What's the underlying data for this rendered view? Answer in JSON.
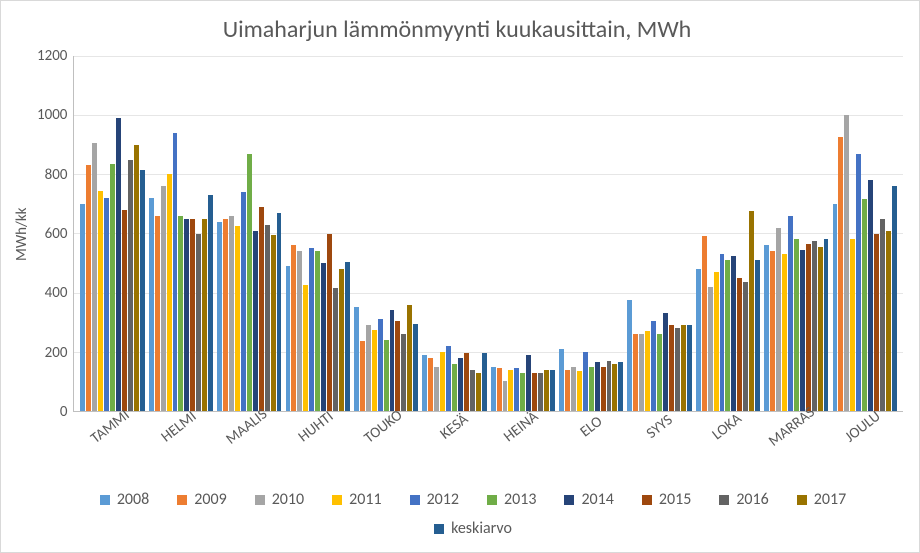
{
  "chart": {
    "type": "bar",
    "title": "Uimaharjun lämmönmyynti kuukausittain, MWh",
    "title_fontsize": 24,
    "ylabel": "MWh/kk",
    "label_fontsize": 15,
    "tick_fontsize": 15,
    "background_color": "#ffffff",
    "border_color": "#d9d9d9",
    "grid_color": "#e6e6e6",
    "axis_color": "#bfbfbf",
    "text_color": "#595959",
    "ylim": [
      0,
      1200
    ],
    "ytick_step": 200,
    "yticks": [
      "1200",
      "1000",
      "800",
      "600",
      "400",
      "200",
      "0"
    ],
    "categories": [
      "TAMMI",
      "HELMI",
      "MAALIS",
      "HUHTI",
      "TOUKO",
      "KESÄ",
      "HEINÄ",
      "ELO",
      "SYYS",
      "LOKA",
      "MARRAS",
      "JOULU"
    ],
    "series": [
      {
        "label": "2008",
        "color": "#5b9bd5",
        "values": [
          700,
          720,
          640,
          490,
          350,
          190,
          150,
          210,
          375,
          480,
          560,
          700
        ]
      },
      {
        "label": "2009",
        "color": "#ed7d31",
        "values": [
          830,
          660,
          650,
          560,
          235,
          180,
          145,
          140,
          260,
          590,
          540,
          925
        ]
      },
      {
        "label": "2010",
        "color": "#a5a5a5",
        "values": [
          905,
          760,
          660,
          540,
          290,
          150,
          100,
          150,
          260,
          420,
          620,
          1000
        ]
      },
      {
        "label": "2011",
        "color": "#ffc000",
        "values": [
          745,
          800,
          625,
          425,
          275,
          200,
          140,
          135,
          270,
          470,
          530,
          580
        ]
      },
      {
        "label": "2012",
        "color": "#4472c4",
        "values": [
          720,
          940,
          740,
          550,
          310,
          220,
          145,
          200,
          305,
          530,
          660,
          870
        ]
      },
      {
        "label": "2013",
        "color": "#70ad47",
        "values": [
          835,
          660,
          870,
          540,
          240,
          160,
          130,
          150,
          260,
          510,
          580,
          715
        ]
      },
      {
        "label": "2014",
        "color": "#264478",
        "values": [
          990,
          650,
          610,
          500,
          340,
          180,
          190,
          165,
          330,
          525,
          545,
          780
        ]
      },
      {
        "label": "2015",
        "color": "#9e480e",
        "values": [
          680,
          650,
          690,
          600,
          305,
          195,
          130,
          150,
          290,
          450,
          565,
          600
        ]
      },
      {
        "label": "2016",
        "color": "#636363",
        "values": [
          850,
          600,
          630,
          415,
          260,
          140,
          130,
          170,
          280,
          435,
          575,
          650
        ]
      },
      {
        "label": "2017",
        "color": "#997300",
        "values": [
          900,
          650,
          595,
          480,
          360,
          130,
          140,
          160,
          290,
          675,
          555,
          610
        ]
      },
      {
        "label": "keskiarvo",
        "color": "#255e91",
        "values": [
          815,
          730,
          670,
          505,
          295,
          195,
          140,
          165,
          290,
          510,
          580,
          760
        ]
      }
    ]
  }
}
